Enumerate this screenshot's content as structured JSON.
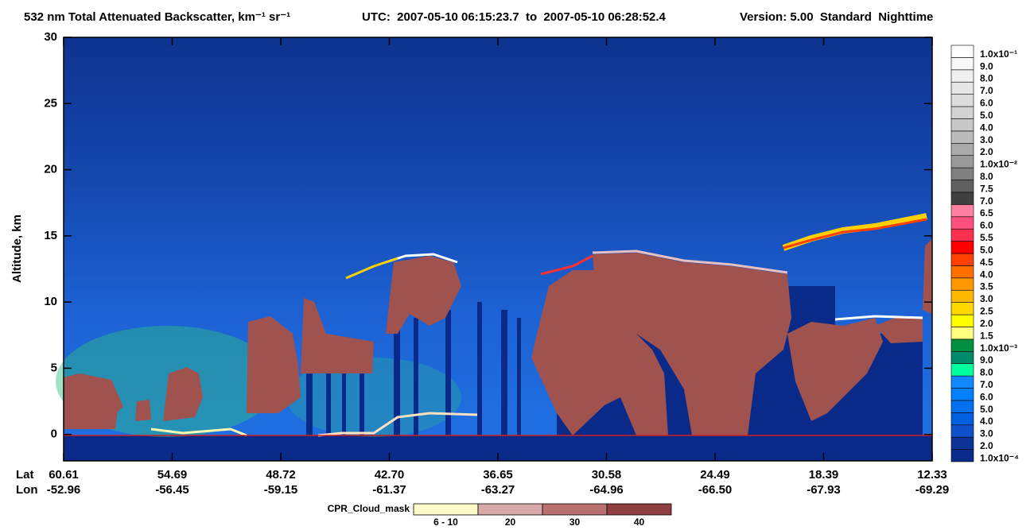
{
  "chart_data": {
    "type": "heatmap",
    "title": "532 nm Total Attenuated Backscatter, km⁻¹ sr⁻¹",
    "time_range": "UTC:  2007-05-10 06:15:23.7  to  2007-05-10 06:28:52.4",
    "version": "Version: 5.00  Standard  Nighttime",
    "y_label": "Altitude, km",
    "ylim": [
      -2,
      30
    ],
    "yticks": [
      0,
      5,
      10,
      15,
      20,
      25,
      30
    ],
    "lat_label": "Lat",
    "lon_label": "Lon",
    "lat": [
      "60.61",
      "54.69",
      "48.72",
      "42.70",
      "36.65",
      "30.58",
      "24.49",
      "18.39",
      "12.33"
    ],
    "lon": [
      "-52.96",
      "-56.45",
      "-59.15",
      "-61.37",
      "-63.27",
      "-64.96",
      "-66.50",
      "-67.93",
      "-69.29"
    ],
    "colorbar": {
      "labels": [
        "1.0x10⁻⁴",
        "2.0",
        "3.0",
        "4.0",
        "5.0",
        "6.0",
        "7.0",
        "8.0",
        "9.0",
        "1.0x10⁻³",
        "1.5",
        "2.0",
        "2.5",
        "3.0",
        "3.5",
        "4.0",
        "4.5",
        "5.0",
        "5.5",
        "6.0",
        "6.5",
        "7.0",
        "7.5",
        "8.0",
        "1.0x10⁻²",
        "2.0",
        "3.0",
        "4.0",
        "5.0",
        "6.0",
        "7.0",
        "8.0",
        "9.0",
        "1.0x10⁻¹"
      ],
      "colors": [
        "#0a2a8a",
        "#0d3396",
        "#1050c8",
        "#0060e0",
        "#0070ee",
        "#0080ff",
        "#1088ff",
        "#00ff9f",
        "#008a6a",
        "#009040",
        "#ffff80",
        "#ffff00",
        "#ffd800",
        "#ffb800",
        "#ff9800",
        "#ff7000",
        "#ff4000",
        "#ff0000",
        "#ff3050",
        "#ff5080",
        "#ff80a0",
        "#404040",
        "#606060",
        "#808080",
        "#9a9a9a",
        "#aaaaaa",
        "#bbbbbb",
        "#c8c8c8",
        "#d2d2d2",
        "#dcdcdc",
        "#e6e6e6",
        "#f0f0f0",
        "#f8f8f8",
        "#ffffff"
      ]
    },
    "cpr_legend": {
      "title": "CPR_Cloud_mask",
      "labels": [
        "6 - 10",
        "20",
        "30",
        "40"
      ],
      "colors": [
        "#fffac8",
        "#d9a8a8",
        "#b97070",
        "#8e4040"
      ]
    }
  }
}
